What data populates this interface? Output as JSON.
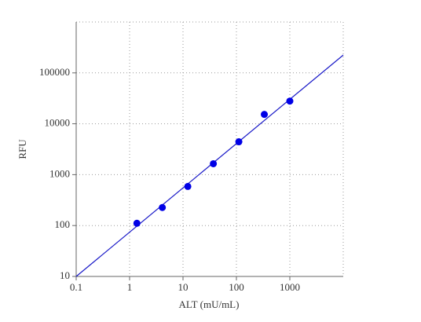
{
  "chart_data": {
    "type": "scatter",
    "x_label": "ALT (mU/mL)",
    "y_label": "RFU",
    "series": [
      {
        "color": "#0000e6",
        "x": [
          1.37,
          4.1,
          12.3,
          37,
          111,
          333,
          1000
        ],
        "values": [
          111,
          226,
          587,
          1640,
          4430,
          15300,
          27900
        ]
      }
    ],
    "fit_line": {
      "color": "#1a1ac8",
      "x": [
        0.1,
        10000
      ],
      "values": [
        10,
        224000
      ]
    },
    "xscale": "log",
    "yscale": "log",
    "xlim": [
      0.1,
      10000
    ],
    "ylim": [
      10,
      1000000
    ],
    "xticks": [
      0.1,
      1,
      10,
      100,
      1000
    ],
    "yticks": [
      10,
      100,
      1000,
      10000,
      100000
    ],
    "grid": true
  }
}
